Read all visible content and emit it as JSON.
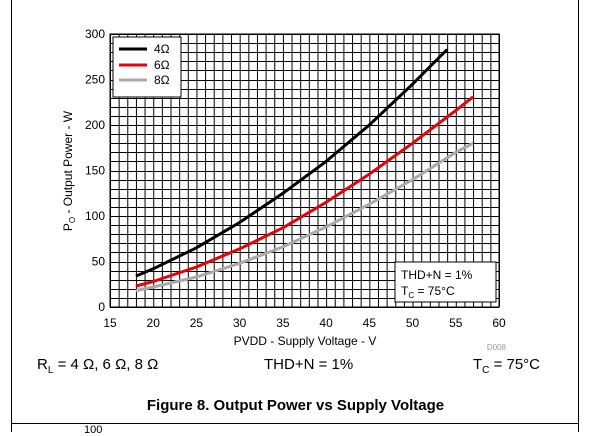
{
  "chart_data": {
    "type": "line",
    "xlabel": "PVDD - Supply Voltage - V",
    "ylabel_main": "P",
    "ylabel_sub": "O",
    "ylabel_rest": " - Output Power - W",
    "xlim": [
      15,
      60
    ],
    "ylim": [
      0,
      300
    ],
    "xticks": [
      15,
      20,
      25,
      30,
      35,
      40,
      45,
      50,
      55,
      60
    ],
    "yticks": [
      0,
      50,
      100,
      150,
      200,
      250,
      300
    ],
    "grid": true,
    "legend_position": "top-left",
    "series": [
      {
        "name": "4Ω",
        "color": "#000000",
        "x": [
          18,
          20,
          25,
          30,
          35,
          40,
          45,
          50,
          54
        ],
        "y": [
          34,
          42,
          65,
          93,
          125,
          160,
          200,
          245,
          283
        ]
      },
      {
        "name": "6Ω",
        "color": "#e8000b",
        "x": [
          18,
          20,
          25,
          30,
          35,
          40,
          45,
          50,
          55,
          57
        ],
        "y": [
          23,
          28,
          44,
          64,
          87,
          115,
          146,
          180,
          216,
          231
        ]
      },
      {
        "name": "8Ω",
        "color": "#aaaaaa",
        "x": [
          18,
          20,
          25,
          30,
          35,
          40,
          45,
          50,
          55,
          57
        ],
        "y": [
          18,
          22,
          33,
          48,
          66,
          88,
          113,
          140,
          170,
          180
        ]
      }
    ],
    "annotation": {
      "line1": "THD+N = 1%",
      "line2_main": "T",
      "line2_sub": "C",
      "line2_rest": " = 75°C"
    },
    "id_label": "D008"
  },
  "conditions": {
    "rl_main": "R",
    "rl_sub": "L",
    "rl_rest": " = 4 Ω, 6 Ω, 8 Ω",
    "thd": "THD+N = 1%",
    "tc_main": "T",
    "tc_sub": "C",
    "tc_rest": " = 75°C"
  },
  "caption": "Figure 8. Output Power vs Supply Voltage",
  "next_chart_tick": "100"
}
